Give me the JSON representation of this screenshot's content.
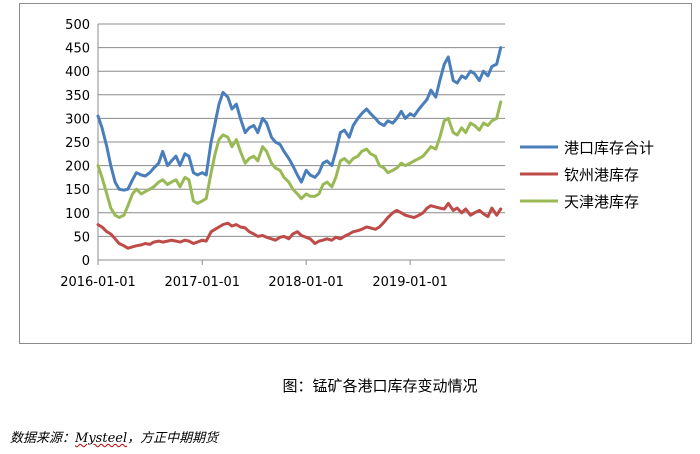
{
  "caption": "图：锰矿各港口库存变动情况",
  "source": {
    "prefix": "数据来源：",
    "name": "Mysteel",
    "suffix": "，方正中期期货"
  },
  "chart_data": {
    "type": "line",
    "title": "",
    "xlabel": "",
    "ylabel": "",
    "ylim": [
      0,
      500
    ],
    "yticks": [
      "0",
      "50",
      "100",
      "150",
      "200",
      "250",
      "300",
      "350",
      "400",
      "450",
      "500"
    ],
    "xlim": [
      "2016-01-01",
      "2019-11-30"
    ],
    "xticks": [
      "2016-01-01",
      "2017-01-01",
      "2018-01-01",
      "2019-01-01"
    ],
    "grid": "horizontal",
    "legend_position": "right",
    "series": [
      {
        "name": "港口库存合计",
        "color": "#4a7ebb",
        "points": [
          [
            "2016-01-01",
            305
          ],
          [
            "2016-01-15",
            280
          ],
          [
            "2016-02-01",
            240
          ],
          [
            "2016-02-15",
            200
          ],
          [
            "2016-03-01",
            165
          ],
          [
            "2016-03-15",
            150
          ],
          [
            "2016-04-01",
            148
          ],
          [
            "2016-04-15",
            150
          ],
          [
            "2016-05-01",
            170
          ],
          [
            "2016-05-15",
            185
          ],
          [
            "2016-06-01",
            180
          ],
          [
            "2016-06-15",
            178
          ],
          [
            "2016-07-01",
            185
          ],
          [
            "2016-07-15",
            195
          ],
          [
            "2016-08-01",
            205
          ],
          [
            "2016-08-15",
            230
          ],
          [
            "2016-09-01",
            200
          ],
          [
            "2016-09-15",
            210
          ],
          [
            "2016-10-01",
            220
          ],
          [
            "2016-10-15",
            200
          ],
          [
            "2016-11-01",
            225
          ],
          [
            "2016-11-15",
            220
          ],
          [
            "2016-12-01",
            185
          ],
          [
            "2016-12-15",
            180
          ],
          [
            "2017-01-01",
            185
          ],
          [
            "2017-01-15",
            180
          ],
          [
            "2017-02-01",
            250
          ],
          [
            "2017-02-15",
            290
          ],
          [
            "2017-03-01",
            330
          ],
          [
            "2017-03-15",
            355
          ],
          [
            "2017-04-01",
            345
          ],
          [
            "2017-04-15",
            320
          ],
          [
            "2017-05-01",
            330
          ],
          [
            "2017-05-15",
            300
          ],
          [
            "2017-06-01",
            270
          ],
          [
            "2017-06-15",
            280
          ],
          [
            "2017-07-01",
            285
          ],
          [
            "2017-07-15",
            270
          ],
          [
            "2017-08-01",
            300
          ],
          [
            "2017-08-15",
            290
          ],
          [
            "2017-09-01",
            260
          ],
          [
            "2017-09-15",
            250
          ],
          [
            "2017-10-01",
            245
          ],
          [
            "2017-10-15",
            230
          ],
          [
            "2017-11-01",
            215
          ],
          [
            "2017-11-15",
            200
          ],
          [
            "2017-12-01",
            180
          ],
          [
            "2017-12-15",
            165
          ],
          [
            "2018-01-01",
            190
          ],
          [
            "2018-01-15",
            180
          ],
          [
            "2018-02-01",
            175
          ],
          [
            "2018-02-15",
            185
          ],
          [
            "2018-03-01",
            205
          ],
          [
            "2018-03-15",
            210
          ],
          [
            "2018-04-01",
            200
          ],
          [
            "2018-04-15",
            230
          ],
          [
            "2018-05-01",
            270
          ],
          [
            "2018-05-15",
            275
          ],
          [
            "2018-06-01",
            260
          ],
          [
            "2018-06-15",
            285
          ],
          [
            "2018-07-01",
            300
          ],
          [
            "2018-07-15",
            310
          ],
          [
            "2018-08-01",
            320
          ],
          [
            "2018-08-15",
            310
          ],
          [
            "2018-09-01",
            300
          ],
          [
            "2018-09-15",
            290
          ],
          [
            "2018-10-01",
            285
          ],
          [
            "2018-10-15",
            295
          ],
          [
            "2018-11-01",
            290
          ],
          [
            "2018-11-15",
            300
          ],
          [
            "2018-12-01",
            315
          ],
          [
            "2018-12-15",
            300
          ],
          [
            "2019-01-01",
            310
          ],
          [
            "2019-01-15",
            305
          ],
          [
            "2019-02-01",
            320
          ],
          [
            "2019-02-15",
            330
          ],
          [
            "2019-03-01",
            340
          ],
          [
            "2019-03-15",
            360
          ],
          [
            "2019-04-01",
            345
          ],
          [
            "2019-04-15",
            380
          ],
          [
            "2019-05-01",
            415
          ],
          [
            "2019-05-15",
            430
          ],
          [
            "2019-06-01",
            380
          ],
          [
            "2019-06-15",
            375
          ],
          [
            "2019-07-01",
            390
          ],
          [
            "2019-07-15",
            385
          ],
          [
            "2019-08-01",
            400
          ],
          [
            "2019-08-15",
            395
          ],
          [
            "2019-09-01",
            380
          ],
          [
            "2019-09-15",
            400
          ],
          [
            "2019-10-01",
            390
          ],
          [
            "2019-10-15",
            410
          ],
          [
            "2019-11-01",
            415
          ],
          [
            "2019-11-15",
            450
          ]
        ]
      },
      {
        "name": "钦州港库存",
        "color": "#be4b48",
        "points": [
          [
            "2016-01-01",
            75
          ],
          [
            "2016-01-15",
            70
          ],
          [
            "2016-02-01",
            60
          ],
          [
            "2016-02-15",
            55
          ],
          [
            "2016-03-01",
            45
          ],
          [
            "2016-03-15",
            35
          ],
          [
            "2016-04-01",
            30
          ],
          [
            "2016-04-15",
            25
          ],
          [
            "2016-05-01",
            28
          ],
          [
            "2016-05-15",
            30
          ],
          [
            "2016-06-01",
            32
          ],
          [
            "2016-06-15",
            35
          ],
          [
            "2016-07-01",
            33
          ],
          [
            "2016-07-15",
            38
          ],
          [
            "2016-08-01",
            40
          ],
          [
            "2016-08-15",
            38
          ],
          [
            "2016-09-01",
            40
          ],
          [
            "2016-09-15",
            42
          ],
          [
            "2016-10-01",
            40
          ],
          [
            "2016-10-15",
            38
          ],
          [
            "2016-11-01",
            42
          ],
          [
            "2016-11-15",
            40
          ],
          [
            "2016-12-01",
            35
          ],
          [
            "2016-12-15",
            38
          ],
          [
            "2017-01-01",
            42
          ],
          [
            "2017-01-15",
            40
          ],
          [
            "2017-02-01",
            60
          ],
          [
            "2017-02-15",
            65
          ],
          [
            "2017-03-01",
            70
          ],
          [
            "2017-03-15",
            75
          ],
          [
            "2017-04-01",
            78
          ],
          [
            "2017-04-15",
            72
          ],
          [
            "2017-05-01",
            75
          ],
          [
            "2017-05-15",
            70
          ],
          [
            "2017-06-01",
            68
          ],
          [
            "2017-06-15",
            60
          ],
          [
            "2017-07-01",
            55
          ],
          [
            "2017-07-15",
            50
          ],
          [
            "2017-08-01",
            52
          ],
          [
            "2017-08-15",
            48
          ],
          [
            "2017-09-01",
            45
          ],
          [
            "2017-09-15",
            42
          ],
          [
            "2017-10-01",
            48
          ],
          [
            "2017-10-15",
            50
          ],
          [
            "2017-11-01",
            45
          ],
          [
            "2017-11-15",
            55
          ],
          [
            "2017-12-01",
            60
          ],
          [
            "2017-12-15",
            52
          ],
          [
            "2018-01-01",
            48
          ],
          [
            "2018-01-15",
            45
          ],
          [
            "2018-02-01",
            35
          ],
          [
            "2018-02-15",
            40
          ],
          [
            "2018-03-01",
            42
          ],
          [
            "2018-03-15",
            45
          ],
          [
            "2018-04-01",
            42
          ],
          [
            "2018-04-15",
            48
          ],
          [
            "2018-05-01",
            45
          ],
          [
            "2018-05-15",
            50
          ],
          [
            "2018-06-01",
            55
          ],
          [
            "2018-06-15",
            60
          ],
          [
            "2018-07-01",
            62
          ],
          [
            "2018-07-15",
            65
          ],
          [
            "2018-08-01",
            70
          ],
          [
            "2018-08-15",
            68
          ],
          [
            "2018-09-01",
            65
          ],
          [
            "2018-09-15",
            70
          ],
          [
            "2018-10-01",
            80
          ],
          [
            "2018-10-15",
            90
          ],
          [
            "2018-11-01",
            100
          ],
          [
            "2018-11-15",
            105
          ],
          [
            "2018-12-01",
            100
          ],
          [
            "2018-12-15",
            95
          ],
          [
            "2019-01-01",
            92
          ],
          [
            "2019-01-15",
            90
          ],
          [
            "2019-02-01",
            95
          ],
          [
            "2019-02-15",
            100
          ],
          [
            "2019-03-01",
            110
          ],
          [
            "2019-03-15",
            115
          ],
          [
            "2019-04-01",
            112
          ],
          [
            "2019-04-15",
            110
          ],
          [
            "2019-05-01",
            108
          ],
          [
            "2019-05-15",
            120
          ],
          [
            "2019-06-01",
            105
          ],
          [
            "2019-06-15",
            110
          ],
          [
            "2019-07-01",
            100
          ],
          [
            "2019-07-15",
            108
          ],
          [
            "2019-08-01",
            95
          ],
          [
            "2019-08-15",
            100
          ],
          [
            "2019-09-01",
            105
          ],
          [
            "2019-09-15",
            98
          ],
          [
            "2019-10-01",
            92
          ],
          [
            "2019-10-15",
            110
          ],
          [
            "2019-11-01",
            95
          ],
          [
            "2019-11-15",
            108
          ]
        ]
      },
      {
        "name": "天津港库存",
        "color": "#98b954",
        "points": [
          [
            "2016-01-01",
            200
          ],
          [
            "2016-01-15",
            175
          ],
          [
            "2016-02-01",
            140
          ],
          [
            "2016-02-15",
            110
          ],
          [
            "2016-03-01",
            95
          ],
          [
            "2016-03-15",
            90
          ],
          [
            "2016-04-01",
            95
          ],
          [
            "2016-04-15",
            115
          ],
          [
            "2016-05-01",
            140
          ],
          [
            "2016-05-15",
            150
          ],
          [
            "2016-06-01",
            140
          ],
          [
            "2016-06-15",
            145
          ],
          [
            "2016-07-01",
            150
          ],
          [
            "2016-07-15",
            155
          ],
          [
            "2016-08-01",
            165
          ],
          [
            "2016-08-15",
            170
          ],
          [
            "2016-09-01",
            160
          ],
          [
            "2016-09-15",
            165
          ],
          [
            "2016-10-01",
            170
          ],
          [
            "2016-10-15",
            155
          ],
          [
            "2016-11-01",
            175
          ],
          [
            "2016-11-15",
            170
          ],
          [
            "2016-12-01",
            125
          ],
          [
            "2016-12-15",
            120
          ],
          [
            "2017-01-01",
            125
          ],
          [
            "2017-01-15",
            130
          ],
          [
            "2017-02-01",
            185
          ],
          [
            "2017-02-15",
            225
          ],
          [
            "2017-03-01",
            255
          ],
          [
            "2017-03-15",
            265
          ],
          [
            "2017-04-01",
            260
          ],
          [
            "2017-04-15",
            240
          ],
          [
            "2017-05-01",
            255
          ],
          [
            "2017-05-15",
            230
          ],
          [
            "2017-06-01",
            205
          ],
          [
            "2017-06-15",
            215
          ],
          [
            "2017-07-01",
            220
          ],
          [
            "2017-07-15",
            210
          ],
          [
            "2017-08-01",
            240
          ],
          [
            "2017-08-15",
            230
          ],
          [
            "2017-09-01",
            205
          ],
          [
            "2017-09-15",
            195
          ],
          [
            "2017-10-01",
            190
          ],
          [
            "2017-10-15",
            175
          ],
          [
            "2017-11-01",
            165
          ],
          [
            "2017-11-15",
            150
          ],
          [
            "2017-12-01",
            140
          ],
          [
            "2017-12-15",
            130
          ],
          [
            "2018-01-01",
            140
          ],
          [
            "2018-01-15",
            135
          ],
          [
            "2018-02-01",
            135
          ],
          [
            "2018-02-15",
            140
          ],
          [
            "2018-03-01",
            160
          ],
          [
            "2018-03-15",
            165
          ],
          [
            "2018-04-01",
            155
          ],
          [
            "2018-04-15",
            175
          ],
          [
            "2018-05-01",
            210
          ],
          [
            "2018-05-15",
            215
          ],
          [
            "2018-06-01",
            205
          ],
          [
            "2018-06-15",
            215
          ],
          [
            "2018-07-01",
            220
          ],
          [
            "2018-07-15",
            230
          ],
          [
            "2018-08-01",
            235
          ],
          [
            "2018-08-15",
            225
          ],
          [
            "2018-09-01",
            220
          ],
          [
            "2018-09-15",
            200
          ],
          [
            "2018-10-01",
            195
          ],
          [
            "2018-10-15",
            185
          ],
          [
            "2018-11-01",
            190
          ],
          [
            "2018-11-15",
            195
          ],
          [
            "2018-12-01",
            205
          ],
          [
            "2018-12-15",
            200
          ],
          [
            "2019-01-01",
            205
          ],
          [
            "2019-01-15",
            210
          ],
          [
            "2019-02-01",
            215
          ],
          [
            "2019-02-15",
            220
          ],
          [
            "2019-03-01",
            230
          ],
          [
            "2019-03-15",
            240
          ],
          [
            "2019-04-01",
            235
          ],
          [
            "2019-04-15",
            260
          ],
          [
            "2019-05-01",
            295
          ],
          [
            "2019-05-15",
            300
          ],
          [
            "2019-06-01",
            270
          ],
          [
            "2019-06-15",
            265
          ],
          [
            "2019-07-01",
            280
          ],
          [
            "2019-07-15",
            270
          ],
          [
            "2019-08-01",
            290
          ],
          [
            "2019-08-15",
            285
          ],
          [
            "2019-09-01",
            275
          ],
          [
            "2019-09-15",
            290
          ],
          [
            "2019-10-01",
            285
          ],
          [
            "2019-10-15",
            295
          ],
          [
            "2019-11-01",
            300
          ],
          [
            "2019-11-15",
            335
          ]
        ]
      }
    ]
  }
}
